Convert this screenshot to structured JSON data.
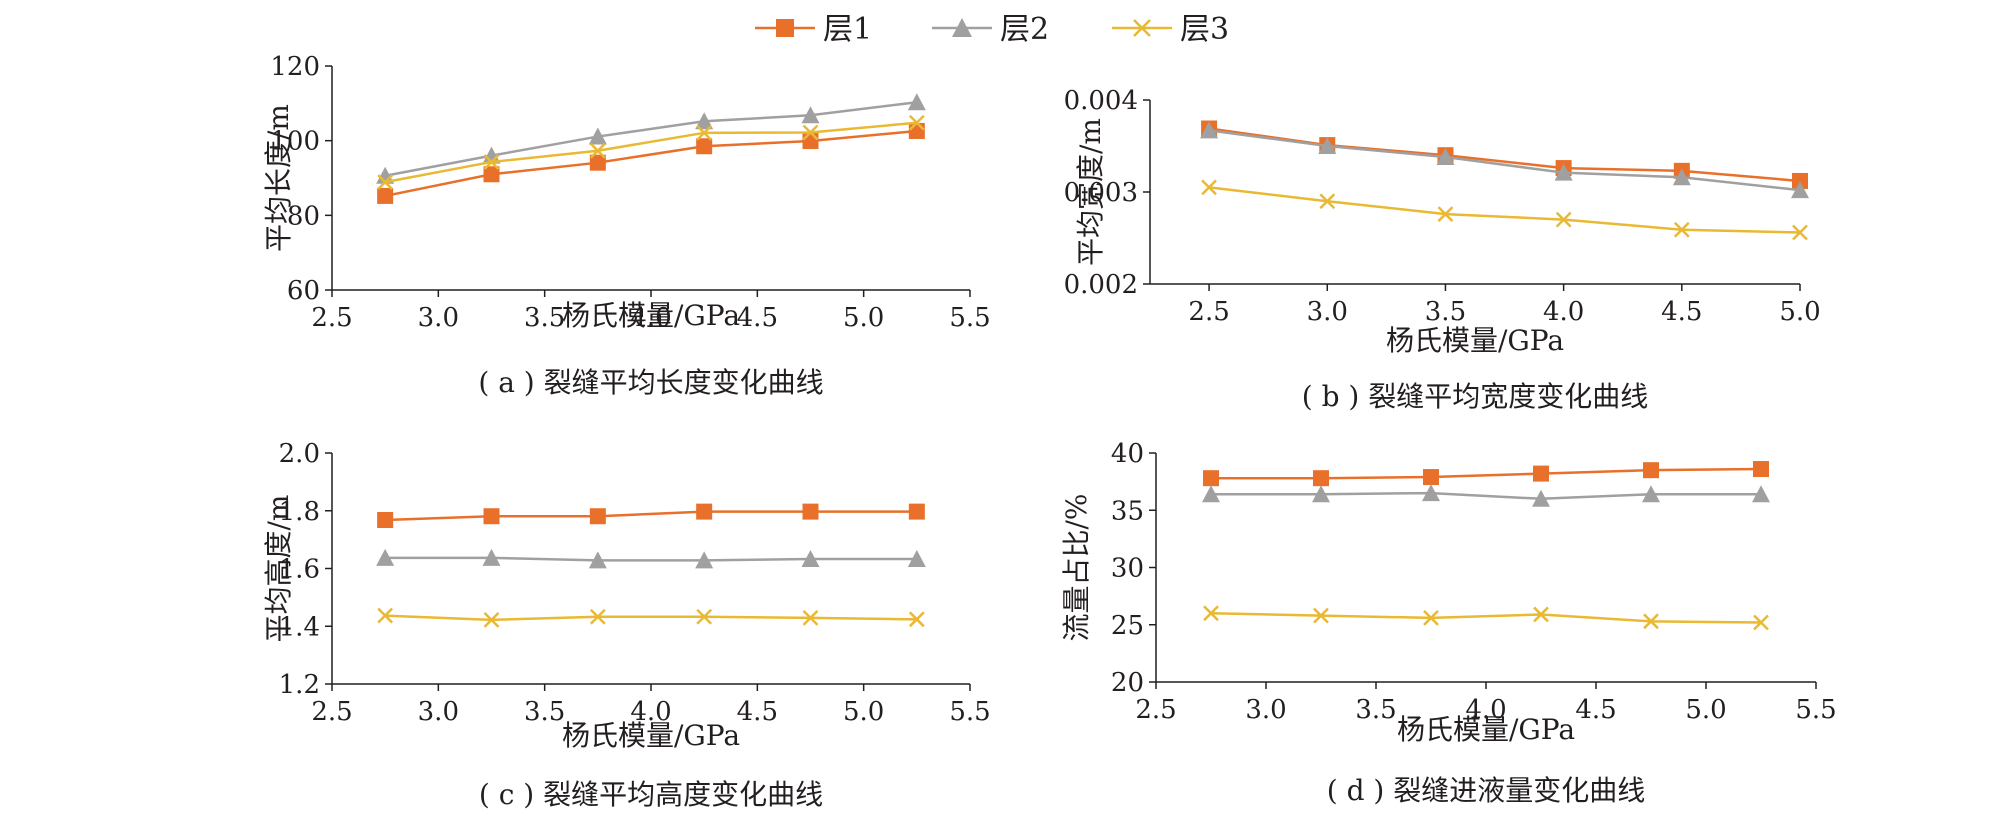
{
  "legend": {
    "items": [
      {
        "label": "层1",
        "color": "#e8702a",
        "marker": "square"
      },
      {
        "label": "层2",
        "color": "#a0a0a0",
        "marker": "triangle"
      },
      {
        "label": "层3",
        "color": "#e9b934",
        "marker": "cross"
      }
    ]
  },
  "chart_data": [
    {
      "type": "line",
      "caption": "( a ) 裂缝平均长度变化曲线",
      "xlabel": "杨氏模量/GPa",
      "ylabel": "平均长度/m",
      "xlim": [
        2.5,
        5.5
      ],
      "ylim": [
        60,
        120
      ],
      "xticks": [
        "2.5",
        "3.0",
        "3.5",
        "4.0",
        "4.5",
        "5.0",
        "5.5"
      ],
      "xtick_values": [
        2.5,
        3.0,
        3.5,
        4.0,
        4.5,
        5.0,
        5.5
      ],
      "yticks": [
        "60",
        "80",
        "100",
        "120"
      ],
      "ytick_values": [
        60,
        80,
        100,
        120
      ],
      "x": [
        2.75,
        3.25,
        3.75,
        4.25,
        4.75,
        5.25
      ],
      "series": [
        {
          "name": "层1",
          "values": [
            85.2,
            91.0,
            94.1,
            98.5,
            99.9,
            102.6
          ]
        },
        {
          "name": "层2",
          "values": [
            90.6,
            96.0,
            101.1,
            105.2,
            106.8,
            110.3
          ]
        },
        {
          "name": "层3",
          "values": [
            88.9,
            94.3,
            97.3,
            102.1,
            102.2,
            104.8
          ]
        }
      ]
    },
    {
      "type": "line",
      "caption": "( b ) 裂缝平均宽度变化曲线",
      "xlabel": "杨氏模量/GPa",
      "ylabel": "平均宽度/m",
      "xlim": [
        2.25,
        5.0
      ],
      "ylim": [
        0.002,
        0.004
      ],
      "xticks": [
        "2.5",
        "3.0",
        "3.5",
        "4.0",
        "4.5",
        "5.0"
      ],
      "xtick_values": [
        2.5,
        3.0,
        3.5,
        4.0,
        4.5,
        5.0
      ],
      "yticks": [
        "0.002",
        "0.003",
        "0.004"
      ],
      "ytick_values": [
        0.002,
        0.003,
        0.004
      ],
      "x": [
        2.5,
        3.0,
        3.5,
        4.0,
        4.5,
        5.0
      ],
      "series": [
        {
          "name": "层1",
          "values": [
            0.00369,
            0.00351,
            0.0034,
            0.00326,
            0.00323,
            0.00312
          ]
        },
        {
          "name": "层2",
          "values": [
            0.00367,
            0.0035,
            0.00338,
            0.00321,
            0.00316,
            0.00302
          ]
        },
        {
          "name": "层3",
          "values": [
            0.00305,
            0.0029,
            0.00276,
            0.0027,
            0.00259,
            0.00256
          ]
        }
      ]
    },
    {
      "type": "line",
      "caption": "( c ) 裂缝平均高度变化曲线",
      "xlabel": "杨氏模量/GPa",
      "ylabel": "平均高度/m",
      "xlim": [
        2.5,
        5.5
      ],
      "ylim": [
        1.2,
        2.0
      ],
      "xticks": [
        "2.5",
        "3.0",
        "3.5",
        "4.0",
        "4.5",
        "5.0",
        "5.5"
      ],
      "xtick_values": [
        2.5,
        3.0,
        3.5,
        4.0,
        4.5,
        5.0,
        5.5
      ],
      "yticks": [
        "1.2",
        "1.4",
        "1.6",
        "1.8",
        "2.0"
      ],
      "ytick_values": [
        1.2,
        1.4,
        1.6,
        1.8,
        2.0
      ],
      "x": [
        2.75,
        3.25,
        3.75,
        4.25,
        4.75,
        5.25
      ],
      "series": [
        {
          "name": "层1",
          "values": [
            1.768,
            1.781,
            1.781,
            1.797,
            1.797,
            1.797
          ]
        },
        {
          "name": "层2",
          "values": [
            1.637,
            1.637,
            1.628,
            1.628,
            1.633,
            1.633
          ]
        },
        {
          "name": "层3",
          "values": [
            1.437,
            1.422,
            1.433,
            1.433,
            1.429,
            1.424
          ]
        }
      ]
    },
    {
      "type": "line",
      "caption": "( d ) 裂缝进液量变化曲线",
      "xlabel": "杨氏模量/GPa",
      "ylabel": "流量占比/%",
      "xlim": [
        2.5,
        5.5
      ],
      "ylim": [
        20,
        40
      ],
      "xticks": [
        "2.5",
        "3.0",
        "3.5",
        "4.0",
        "4.5",
        "5.0",
        "5.5"
      ],
      "xtick_values": [
        2.5,
        3.0,
        3.5,
        4.0,
        4.5,
        5.0,
        5.5
      ],
      "yticks": [
        "20",
        "25",
        "30",
        "35",
        "40"
      ],
      "ytick_values": [
        20,
        25,
        30,
        35,
        40
      ],
      "x": [
        2.75,
        3.25,
        3.75,
        4.25,
        4.75,
        5.25
      ],
      "series": [
        {
          "name": "层1",
          "values": [
            37.8,
            37.8,
            37.9,
            38.2,
            38.5,
            38.6
          ]
        },
        {
          "name": "层2",
          "values": [
            36.4,
            36.4,
            36.5,
            36.0,
            36.4,
            36.4
          ]
        },
        {
          "name": "层3",
          "values": [
            26.0,
            25.8,
            25.6,
            25.9,
            25.3,
            25.2
          ]
        }
      ]
    }
  ]
}
